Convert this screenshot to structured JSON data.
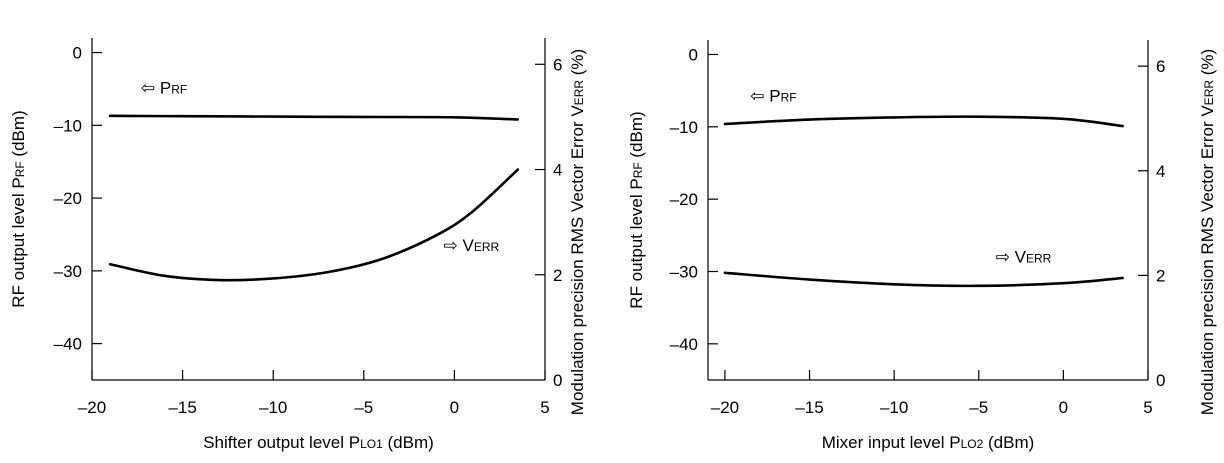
{
  "chart_data": [
    {
      "type": "line",
      "x_axis": {
        "label_main": "Shifter output level P",
        "label_sub": "LO1",
        "label_unit": " (dBm)",
        "range": [
          -20,
          5
        ],
        "ticks": [
          -20,
          -15,
          -10,
          -5,
          0,
          5
        ],
        "tick_labels": [
          "–20",
          "–15",
          "–10",
          "–5",
          "0",
          "5"
        ]
      },
      "y_left": {
        "label_main": "RF output level P",
        "label_sub": "RF",
        "label_unit": " (dBm)",
        "range": [
          -45,
          2
        ],
        "ticks": [
          0,
          -10,
          -20,
          -30,
          -40
        ],
        "tick_labels": [
          "0",
          "–10",
          "–20",
          "–30",
          "–40"
        ]
      },
      "y_right": {
        "label_main": "Modulation precision RMS Vector Error V",
        "label_sub": "ERR",
        "label_unit": " (%)",
        "range": [
          0,
          6.5
        ],
        "ticks": [
          0,
          2,
          4,
          6
        ],
        "tick_labels": [
          "0",
          "2",
          "4",
          "6"
        ]
      },
      "series": [
        {
          "name_main": "P",
          "name_sub": "RF",
          "axis": "left",
          "arrow": "⇦",
          "label_at": [
            -17.3,
            -5.6
          ],
          "x": [
            -19,
            -15,
            -10,
            -5,
            0,
            3.5
          ],
          "y": [
            -8.7,
            -8.75,
            -8.8,
            -8.85,
            -8.9,
            -9.2
          ]
        },
        {
          "name_main": "V",
          "name_sub": "ERR",
          "axis": "right",
          "arrow": "⇨",
          "label_at": [
            -0.6,
            2.45
          ],
          "x": [
            -19,
            -16,
            -13,
            -10,
            -7,
            -4,
            -1,
            1,
            3.5
          ],
          "y": [
            2.2,
            1.98,
            1.9,
            1.93,
            2.05,
            2.3,
            2.75,
            3.2,
            4.0
          ]
        }
      ]
    },
    {
      "type": "line",
      "x_axis": {
        "label_main": "Mixer input level P",
        "label_sub": "LO2",
        "label_unit": " (dBm)",
        "range": [
          -21,
          5
        ],
        "ticks": [
          -20,
          -15,
          -10,
          -5,
          0,
          5
        ],
        "tick_labels": [
          "–20",
          "–15",
          "–10",
          "–5",
          "0",
          "5"
        ]
      },
      "y_left": {
        "label_main": "RF output level P",
        "label_sub": "RF",
        "label_unit": " (dBm)",
        "range": [
          -45,
          2
        ],
        "ticks": [
          0,
          -10,
          -20,
          -30,
          -40
        ],
        "tick_labels": [
          "0",
          "–10",
          "–20",
          "–30",
          "–40"
        ]
      },
      "y_right": {
        "label_main": "Modulation precision RMS Vector Error V",
        "label_sub": "ERR",
        "label_unit": " (%)",
        "range": [
          0,
          6.5
        ],
        "ticks": [
          0,
          2,
          4,
          6
        ],
        "tick_labels": [
          "0",
          "2",
          "4",
          "6"
        ]
      },
      "series": [
        {
          "name_main": "P",
          "name_sub": "RF",
          "axis": "left",
          "arrow": "⇦",
          "label_at": [
            -18.5,
            -6.5
          ],
          "x": [
            -20,
            -15,
            -10,
            -5,
            0,
            3.5
          ],
          "y": [
            -9.6,
            -9.0,
            -8.7,
            -8.6,
            -8.9,
            -9.9
          ]
        },
        {
          "name_main": "V",
          "name_sub": "ERR",
          "axis": "right",
          "arrow": "⇨",
          "label_at": [
            -4,
            2.25
          ],
          "x": [
            -20,
            -15,
            -10,
            -5,
            0,
            3.5
          ],
          "y": [
            2.05,
            1.92,
            1.83,
            1.8,
            1.85,
            1.95
          ]
        }
      ]
    }
  ]
}
